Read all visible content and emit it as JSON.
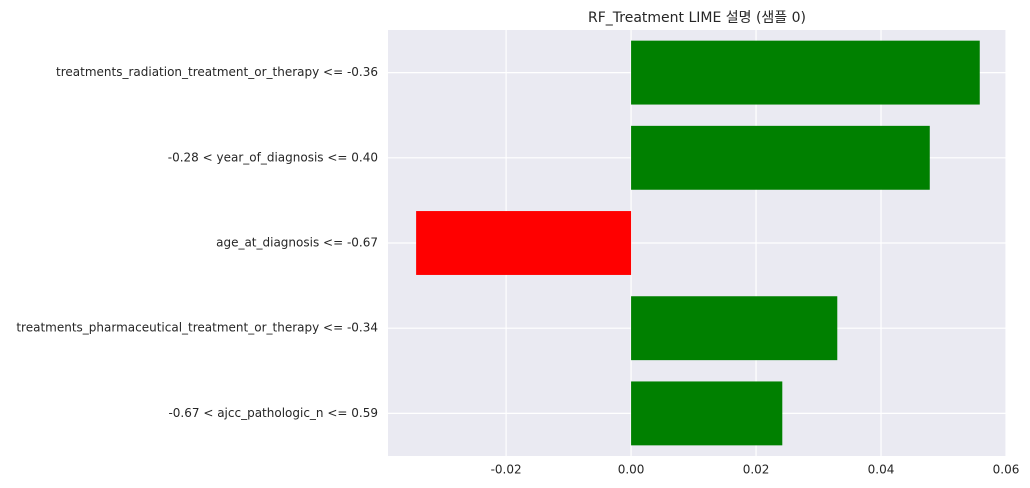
{
  "chart_data": {
    "type": "barh",
    "title": "RF_Treatment LIME 설명 (샘플 0)",
    "categories": [
      "treatments_radiation_treatment_or_therapy <= -0.36",
      "-0.28 < year_of_diagnosis <= 0.40",
      "age_at_diagnosis <= -0.67",
      "treatments_pharmaceutical_treatment_or_therapy <= -0.34",
      "-0.67 < ajcc_pathologic_n <= 0.59"
    ],
    "values": [
      0.0558,
      0.0478,
      -0.0344,
      0.033,
      0.0242
    ],
    "colors": [
      "#008000",
      "#008000",
      "#ff0000",
      "#008000",
      "#008000"
    ],
    "xlim": [
      -0.0389,
      0.06
    ],
    "xticks": [
      -0.02,
      {
        "value": 0,
        "label": "0.00"
      },
      0.02,
      0.04,
      0.06
    ],
    "grid": true
  }
}
